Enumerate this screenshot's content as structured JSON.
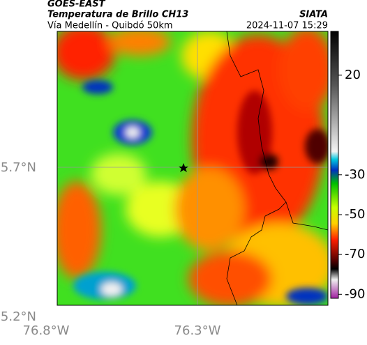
{
  "header": {
    "source": "GOES-EAST",
    "title": "Temperatura de Brillo CH13",
    "subtitle": "Vía Medellín - Quibdó 50km",
    "agency": "SIATA",
    "timestamp": "2024-11-07 15:29"
  },
  "map": {
    "lat_labels": [
      "5.7°N",
      "5.2°N"
    ],
    "lon_labels": [
      "76.8°W",
      "76.3°W"
    ]
  },
  "colorbar": {
    "lim": [
      -92,
      42
    ],
    "ticks": [
      20,
      -30,
      -50,
      -70,
      -90
    ]
  }
}
